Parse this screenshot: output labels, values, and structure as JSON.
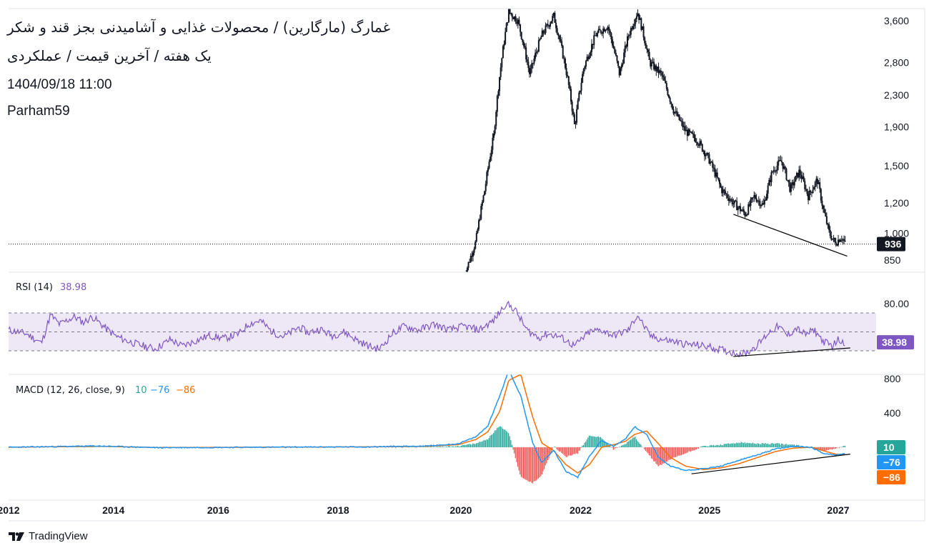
{
  "header": {
    "title_line1": "غمارگ (مارگارین) / محصولات غذایی و آشامیدنی بجز قند و شکر",
    "title_line2": "یک هفته / آخرین قیمت / عملکردی",
    "datetime": "1404/09/18 11:00",
    "author": "Parham59"
  },
  "brand": {
    "name": "TradingView",
    "icon": "tradingview-logo-icon"
  },
  "colors": {
    "candle": "#131722",
    "rsi": "#7e57c2",
    "rsi_band": "#ede7f6",
    "macd": "#2196f3",
    "signal": "#ff6d00",
    "hist_pos": "#26a69a",
    "hist_neg": "#ef5350",
    "price_badge": "#131722",
    "rsi_badge": "#7e57c2",
    "hist_badge": "#26a69a",
    "macd_badge": "#2196f3",
    "signal_badge": "#ff6d00"
  },
  "chart_data": [
    {
      "type": "candlestick",
      "pane": "price",
      "scale": "log",
      "y_ticks": [
        "3,600",
        "2,800",
        "2,300",
        "1,900",
        "1,500",
        "1,200",
        "1,000",
        "850"
      ],
      "y_tick_values": [
        3600,
        2800,
        2300,
        1900,
        1500,
        1200,
        1000,
        850
      ],
      "last_price": 936,
      "last_price_label": "936",
      "close_path": [
        [
          2019.6,
          760
        ],
        [
          2019.8,
          950
        ],
        [
          2019.95,
          1300
        ],
        [
          2020.1,
          1800
        ],
        [
          2020.25,
          3000
        ],
        [
          2020.35,
          3800
        ],
        [
          2020.5,
          3600
        ],
        [
          2020.7,
          2600
        ],
        [
          2020.9,
          3300
        ],
        [
          2021.1,
          3700
        ],
        [
          2021.3,
          2700
        ],
        [
          2021.45,
          1900
        ],
        [
          2021.6,
          2700
        ],
        [
          2021.8,
          3300
        ],
        [
          2022.0,
          3500
        ],
        [
          2022.2,
          2600
        ],
        [
          2022.35,
          3300
        ],
        [
          2022.5,
          3800
        ],
        [
          2022.7,
          2800
        ],
        [
          2022.9,
          2600
        ],
        [
          2023.1,
          2100
        ],
        [
          2023.3,
          1850
        ],
        [
          2023.5,
          1750
        ],
        [
          2023.7,
          1550
        ],
        [
          2023.9,
          1300
        ],
        [
          2024.1,
          1200
        ],
        [
          2024.3,
          1120
        ],
        [
          2024.45,
          1250
        ],
        [
          2024.6,
          1180
        ],
        [
          2024.75,
          1450
        ],
        [
          2024.9,
          1550
        ],
        [
          2025.05,
          1300
        ],
        [
          2025.2,
          1450
        ],
        [
          2025.35,
          1250
        ],
        [
          2025.5,
          1380
        ],
        [
          2025.6,
          1150
        ],
        [
          2025.7,
          1000
        ],
        [
          2025.8,
          940
        ],
        [
          2025.9,
          980
        ],
        [
          2025.97,
          936
        ]
      ],
      "trendline": [
        [
          2024.1,
          1120
        ],
        [
          2026.0,
          870
        ]
      ]
    },
    {
      "type": "line",
      "pane": "rsi",
      "legend_name": "RSI (14)",
      "legend_value": "38.98",
      "last_value": 38.98,
      "last_value_label": "38.98",
      "y_ticks": [
        "80.00"
      ],
      "y_tick_values": [
        80
      ],
      "band": [
        30,
        70
      ],
      "midline": 50,
      "series": [
        [
          2012.0,
          52
        ],
        [
          2012.3,
          48
        ],
        [
          2012.55,
          38
        ],
        [
          2012.7,
          68
        ],
        [
          2012.85,
          58
        ],
        [
          2013.1,
          66
        ],
        [
          2013.25,
          60
        ],
        [
          2013.4,
          66
        ],
        [
          2013.6,
          55
        ],
        [
          2013.8,
          45
        ],
        [
          2014.0,
          40
        ],
        [
          2014.2,
          36
        ],
        [
          2014.45,
          32
        ],
        [
          2014.7,
          42
        ],
        [
          2014.9,
          35
        ],
        [
          2015.1,
          40
        ],
        [
          2015.35,
          46
        ],
        [
          2015.6,
          43
        ],
        [
          2015.85,
          48
        ],
        [
          2016.0,
          58
        ],
        [
          2016.2,
          62
        ],
        [
          2016.4,
          50
        ],
        [
          2016.6,
          45
        ],
        [
          2016.85,
          55
        ],
        [
          2017.0,
          49
        ],
        [
          2017.2,
          53
        ],
        [
          2017.4,
          46
        ],
        [
          2017.6,
          50
        ],
        [
          2017.85,
          40
        ],
        [
          2018.05,
          34
        ],
        [
          2018.2,
          32
        ],
        [
          2018.4,
          48
        ],
        [
          2018.6,
          56
        ],
        [
          2018.85,
          52
        ],
        [
          2019.1,
          58
        ],
        [
          2019.35,
          52
        ],
        [
          2019.6,
          56
        ],
        [
          2019.85,
          52
        ],
        [
          2020.1,
          62
        ],
        [
          2020.3,
          80
        ],
        [
          2020.45,
          74
        ],
        [
          2020.65,
          52
        ],
        [
          2020.85,
          44
        ],
        [
          2021.0,
          48
        ],
        [
          2021.2,
          45
        ],
        [
          2021.45,
          35
        ],
        [
          2021.7,
          50
        ],
        [
          2021.9,
          52
        ],
        [
          2022.1,
          46
        ],
        [
          2022.35,
          52
        ],
        [
          2022.5,
          68
        ],
        [
          2022.7,
          46
        ],
        [
          2022.9,
          42
        ],
        [
          2023.1,
          40
        ],
        [
          2023.3,
          37
        ],
        [
          2023.5,
          36
        ],
        [
          2023.7,
          34
        ],
        [
          2023.9,
          31
        ],
        [
          2024.1,
          28
        ],
        [
          2024.3,
          27
        ],
        [
          2024.5,
          36
        ],
        [
          2024.7,
          50
        ],
        [
          2024.85,
          56
        ],
        [
          2025.0,
          46
        ],
        [
          2025.15,
          54
        ],
        [
          2025.3,
          47
        ],
        [
          2025.45,
          52
        ],
        [
          2025.6,
          40
        ],
        [
          2025.75,
          35
        ],
        [
          2025.85,
          42
        ],
        [
          2025.97,
          38.98
        ]
      ],
      "trendline": [
        [
          2024.1,
          24
        ],
        [
          2026.05,
          33
        ]
      ]
    },
    {
      "type": "macd",
      "pane": "macd",
      "legend_name": "MACD (12, 26, close, 9)",
      "legend_values": [
        "10",
        "−76",
        "−86"
      ],
      "y_ticks": [
        "800",
        "400"
      ],
      "y_tick_values": [
        800,
        400
      ],
      "last_values": {
        "histogram": 10,
        "macd": -76,
        "signal": -86
      },
      "last_labels": {
        "histogram": "10",
        "macd": "−76",
        "signal": "−86"
      },
      "macd_series": [
        [
          2012.0,
          0
        ],
        [
          2013.5,
          15
        ],
        [
          2014.5,
          -5
        ],
        [
          2016.0,
          0
        ],
        [
          2018.0,
          5
        ],
        [
          2019.0,
          15
        ],
        [
          2019.5,
          40
        ],
        [
          2019.8,
          120
        ],
        [
          2020.0,
          250
        ],
        [
          2020.2,
          600
        ],
        [
          2020.35,
          900
        ],
        [
          2020.55,
          600
        ],
        [
          2020.75,
          50
        ],
        [
          2020.9,
          -180
        ],
        [
          2021.1,
          -30
        ],
        [
          2021.3,
          -280
        ],
        [
          2021.5,
          -350
        ],
        [
          2021.7,
          -100
        ],
        [
          2021.9,
          80
        ],
        [
          2022.1,
          10
        ],
        [
          2022.3,
          100
        ],
        [
          2022.45,
          240
        ],
        [
          2022.65,
          150
        ],
        [
          2022.85,
          -120
        ],
        [
          2023.05,
          -220
        ],
        [
          2023.3,
          -270
        ],
        [
          2023.6,
          -250
        ],
        [
          2023.9,
          -220
        ],
        [
          2024.2,
          -150
        ],
        [
          2024.5,
          -90
        ],
        [
          2024.8,
          -20
        ],
        [
          2025.1,
          10
        ],
        [
          2025.4,
          0
        ],
        [
          2025.6,
          -70
        ],
        [
          2025.8,
          -90
        ],
        [
          2025.97,
          -76
        ]
      ],
      "signal_series": [
        [
          2012.0,
          0
        ],
        [
          2013.5,
          12
        ],
        [
          2014.5,
          -3
        ],
        [
          2016.0,
          0
        ],
        [
          2018.0,
          5
        ],
        [
          2019.0,
          12
        ],
        [
          2019.5,
          30
        ],
        [
          2019.8,
          90
        ],
        [
          2020.0,
          180
        ],
        [
          2020.2,
          420
        ],
        [
          2020.35,
          780
        ],
        [
          2020.55,
          850
        ],
        [
          2020.75,
          350
        ],
        [
          2020.9,
          50
        ],
        [
          2021.1,
          -40
        ],
        [
          2021.3,
          -200
        ],
        [
          2021.5,
          -300
        ],
        [
          2021.7,
          -200
        ],
        [
          2021.9,
          0
        ],
        [
          2022.1,
          30
        ],
        [
          2022.3,
          70
        ],
        [
          2022.45,
          150
        ],
        [
          2022.65,
          190
        ],
        [
          2022.85,
          40
        ],
        [
          2023.05,
          -120
        ],
        [
          2023.3,
          -220
        ],
        [
          2023.6,
          -260
        ],
        [
          2023.9,
          -240
        ],
        [
          2024.2,
          -190
        ],
        [
          2024.5,
          -120
        ],
        [
          2024.8,
          -50
        ],
        [
          2025.1,
          -10
        ],
        [
          2025.4,
          0
        ],
        [
          2025.6,
          -40
        ],
        [
          2025.8,
          -80
        ],
        [
          2025.97,
          -86
        ]
      ],
      "trendline": [
        [
          2023.4,
          -310
        ],
        [
          2026.05,
          -80
        ]
      ]
    }
  ],
  "x_axis": {
    "ticks": [
      "2012",
      "2014",
      "2016",
      "2018",
      "2020",
      "2022",
      "2025",
      "2027"
    ],
    "tick_values": [
      2012.0,
      2013.75,
      2015.5,
      2017.5,
      2019.55,
      2021.55,
      2023.7,
      2025.85
    ]
  }
}
